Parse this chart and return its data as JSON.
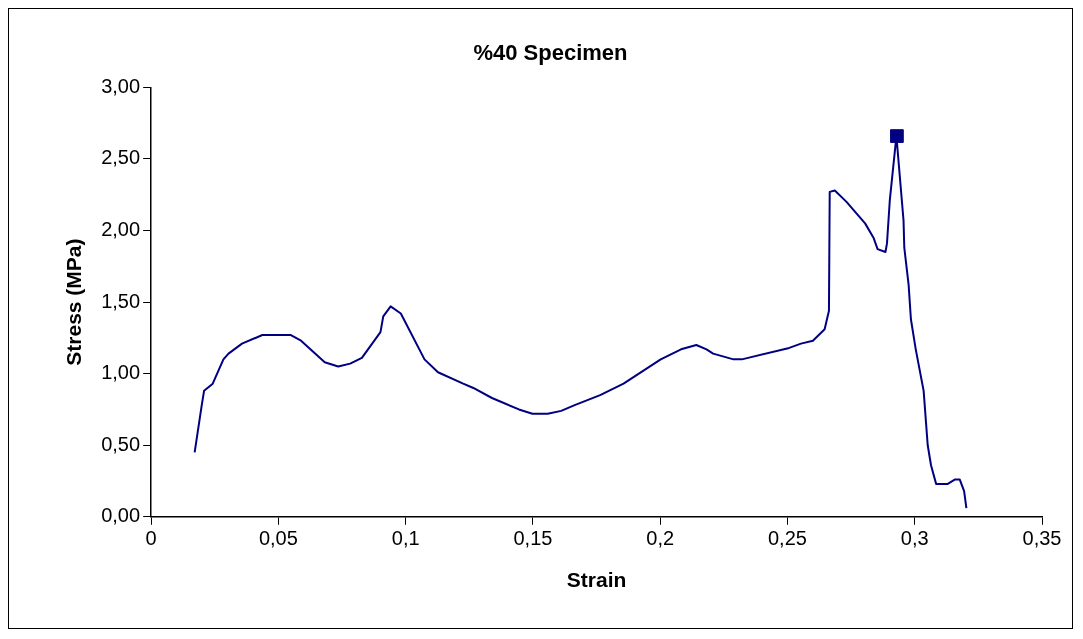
{
  "chart_data": {
    "type": "line",
    "title": "%40 Specimen",
    "xlabel": "Strain",
    "ylabel": "Stress (MPa)",
    "xlim": [
      0,
      0.35
    ],
    "xticks": [
      0,
      {
        "value": 0.05,
        "label": "0,05"
      },
      {
        "value": 0.1,
        "label": "0,1"
      },
      {
        "value": 0.15,
        "label": "0,15"
      },
      {
        "value": 0.2,
        "label": "0,2"
      },
      {
        "value": 0.25,
        "label": "0,25"
      },
      {
        "value": 0.3,
        "label": "0,3"
      },
      {
        "value": 0.35,
        "label": "0,35"
      }
    ],
    "ylim": [
      0,
      3
    ],
    "yticks": [
      {
        "value": 0,
        "label": "0,00"
      },
      {
        "value": 0.5,
        "label": "0,50"
      },
      {
        "value": 1,
        "label": "1,00"
      },
      {
        "value": 1.5,
        "label": "1,50"
      },
      {
        "value": 2,
        "label": "2,00"
      },
      {
        "value": 2.5,
        "label": "2,50"
      },
      {
        "value": 3,
        "label": "3,00"
      }
    ],
    "grid": false,
    "legend": false,
    "series": [
      {
        "color": "#000080",
        "marker": "none",
        "line_style": "solid",
        "x": [
          0.0171,
          0.0198,
          0.0208,
          0.0242,
          0.0284,
          0.0304,
          0.0357,
          0.0437,
          0.0549,
          0.0589,
          0.0682,
          0.0735,
          0.0782,
          0.0828,
          0.0901,
          0.0912,
          0.0941,
          0.0981,
          0.1074,
          0.1127,
          0.1226,
          0.1266,
          0.1339,
          0.1445,
          0.1498,
          0.1558,
          0.1611,
          0.1664,
          0.1764,
          0.1856,
          0.2002,
          0.2082,
          0.2142,
          0.2182,
          0.2208,
          0.2288,
          0.2321,
          0.2507,
          0.2553,
          0.26,
          0.2646,
          0.2663,
          0.2666,
          0.2686,
          0.2732,
          0.2805,
          0.2838,
          0.2854,
          0.2885,
          0.2891,
          0.2902,
          0.2928,
          0.2956,
          0.2959,
          0.2976,
          0.2985,
          0.3004,
          0.3035,
          0.3051,
          0.3064,
          0.3084,
          0.313,
          0.3157,
          0.3177,
          0.3194,
          0.3203
        ],
        "values": [
          0.45,
          0.77,
          0.88,
          0.93,
          1.1,
          1.14,
          1.21,
          1.27,
          1.27,
          1.23,
          1.08,
          1.05,
          1.07,
          1.11,
          1.29,
          1.4,
          1.47,
          1.42,
          1.1,
          1.01,
          0.93,
          0.9,
          0.83,
          0.75,
          0.72,
          0.72,
          0.74,
          0.78,
          0.85,
          0.93,
          1.1,
          1.17,
          1.2,
          1.17,
          1.14,
          1.1,
          1.1,
          1.18,
          1.21,
          1.23,
          1.31,
          1.44,
          2.27,
          2.28,
          2.2,
          2.05,
          1.95,
          1.87,
          1.85,
          1.91,
          2.21,
          2.66,
          2.07,
          1.88,
          1.62,
          1.38,
          1.17,
          0.88,
          0.5,
          0.36,
          0.23,
          0.23,
          0.26,
          0.26,
          0.18,
          0.06
        ]
      },
      {
        "type": "scatter",
        "color": "#000080",
        "marker": "square",
        "x": [
          0.293
        ],
        "values": [
          2.66
        ]
      }
    ]
  }
}
